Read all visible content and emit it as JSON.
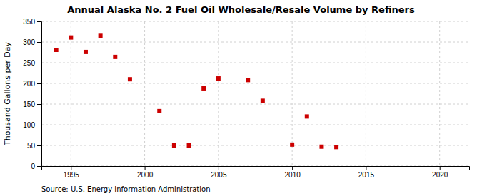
{
  "chart_data": {
    "type": "scatter",
    "title": "Annual Alaska No. 2 Fuel Oil Wholesale/Resale Volume by Refiners",
    "ylabel": "Thousand Gallons per Day",
    "source": "Source: U.S. Energy Information Administration",
    "x": [
      1994,
      1995,
      1996,
      1997,
      1998,
      1999,
      2001,
      2002,
      2003,
      2004,
      2005,
      2007,
      2008,
      2010,
      2011,
      2012,
      2013
    ],
    "values": [
      281,
      311,
      276,
      315,
      264,
      210,
      133,
      50,
      50,
      188,
      212,
      208,
      158,
      52,
      120,
      47,
      46
    ],
    "color": "#cc0000",
    "marker": "square",
    "xlim": [
      1993,
      2022
    ],
    "ylim": [
      0,
      350
    ],
    "xticks": [
      1995,
      2000,
      2005,
      2010,
      2015,
      2020
    ],
    "yticks": [
      0,
      50,
      100,
      150,
      200,
      250,
      300,
      350
    ],
    "grid": true
  }
}
